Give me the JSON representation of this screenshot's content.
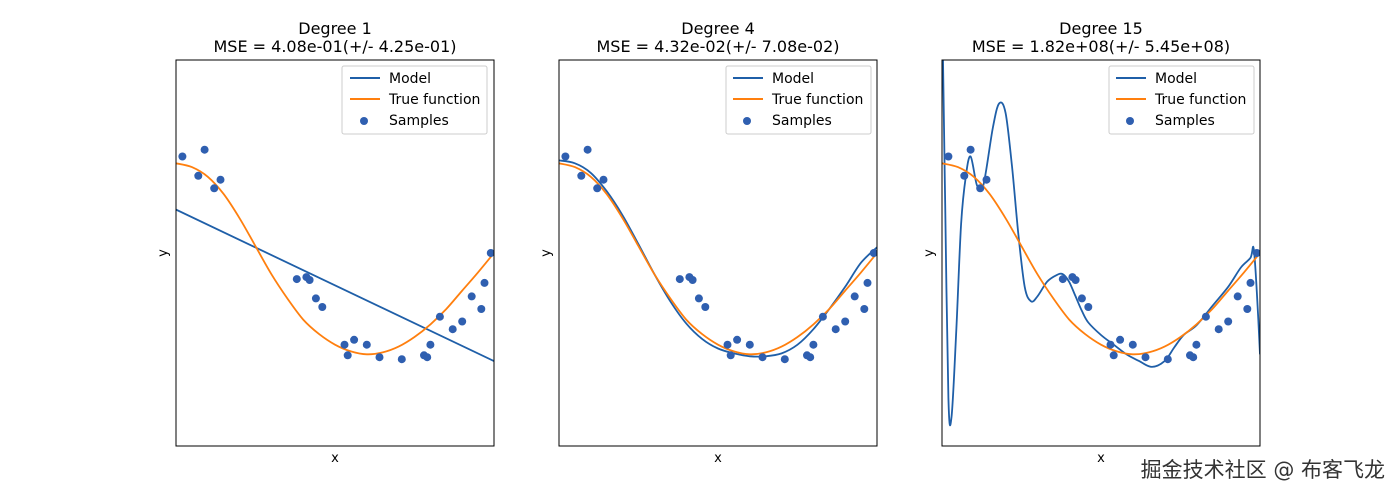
{
  "watermark": "掘金技术社区 @ 布客飞龙",
  "chart_data": [
    {
      "type": "line",
      "title": "Degree 1",
      "subtitle": "MSE = 4.08e-01(+/- 4.25e-01)",
      "xlabel": "x",
      "ylabel": "y",
      "xlim": [
        0,
        1
      ],
      "ylim": [
        -2,
        2
      ],
      "ticks_shown": false,
      "legend": {
        "position": "top-right",
        "entries": [
          "Model",
          "True function",
          "Samples"
        ]
      },
      "colors": {
        "model": "#1f5fa8",
        "true_function": "#ff7f0e",
        "samples": "#2f5fb0"
      },
      "samples": {
        "x": [
          0.02,
          0.07,
          0.09,
          0.12,
          0.14,
          0.38,
          0.41,
          0.42,
          0.44,
          0.46,
          0.53,
          0.54,
          0.56,
          0.6,
          0.64,
          0.71,
          0.78,
          0.79,
          0.8,
          0.83,
          0.87,
          0.9,
          0.93,
          0.96,
          0.97,
          0.99
        ],
        "y": [
          1.0,
          0.8,
          1.07,
          0.67,
          0.76,
          -0.27,
          -0.25,
          -0.28,
          -0.47,
          -0.56,
          -0.95,
          -1.06,
          -0.9,
          -0.95,
          -1.08,
          -1.1,
          -1.06,
          -1.08,
          -0.95,
          -0.66,
          -0.79,
          -0.71,
          -0.45,
          -0.58,
          -0.31,
          -0.0
        ]
      },
      "model": {
        "x": [
          0,
          1
        ],
        "y": [
          0.45,
          -1.12
        ]
      },
      "true_function": {
        "x": [
          0,
          0.05,
          0.1,
          0.15,
          0.2,
          0.25,
          0.3,
          0.35,
          0.4,
          0.45,
          0.5,
          0.55,
          0.6,
          0.65,
          0.7,
          0.75,
          0.8,
          0.85,
          0.9,
          0.95,
          1.0
        ],
        "y": [
          0.93,
          0.89,
          0.79,
          0.61,
          0.36,
          0.07,
          -0.22,
          -0.47,
          -0.69,
          -0.84,
          -0.95,
          -1.02,
          -1.05,
          -1.03,
          -0.97,
          -0.87,
          -0.74,
          -0.58,
          -0.39,
          -0.2,
          0.0
        ]
      }
    },
    {
      "type": "line",
      "title": "Degree 4",
      "subtitle": "MSE = 4.32e-02(+/- 7.08e-02)",
      "xlabel": "x",
      "ylabel": "y",
      "xlim": [
        0,
        1
      ],
      "ylim": [
        -2,
        2
      ],
      "ticks_shown": false,
      "legend": {
        "position": "top-right",
        "entries": [
          "Model",
          "True function",
          "Samples"
        ]
      },
      "colors": {
        "model": "#1f5fa8",
        "true_function": "#ff7f0e",
        "samples": "#2f5fb0"
      },
      "samples": {
        "x": [
          0.02,
          0.07,
          0.09,
          0.12,
          0.14,
          0.38,
          0.41,
          0.42,
          0.44,
          0.46,
          0.53,
          0.54,
          0.56,
          0.6,
          0.64,
          0.71,
          0.78,
          0.79,
          0.8,
          0.83,
          0.87,
          0.9,
          0.93,
          0.96,
          0.97,
          0.99
        ],
        "y": [
          1.0,
          0.8,
          1.07,
          0.67,
          0.76,
          -0.27,
          -0.25,
          -0.28,
          -0.47,
          -0.56,
          -0.95,
          -1.06,
          -0.9,
          -0.95,
          -1.08,
          -1.1,
          -1.06,
          -1.08,
          -0.95,
          -0.66,
          -0.79,
          -0.71,
          -0.45,
          -0.58,
          -0.31,
          -0.0
        ]
      },
      "model": {
        "x": [
          0,
          0.05,
          0.1,
          0.15,
          0.2,
          0.25,
          0.3,
          0.35,
          0.4,
          0.45,
          0.5,
          0.55,
          0.6,
          0.65,
          0.7,
          0.75,
          0.8,
          0.85,
          0.9,
          0.95,
          1.0
        ],
        "y": [
          0.96,
          0.93,
          0.83,
          0.64,
          0.39,
          0.09,
          -0.22,
          -0.5,
          -0.73,
          -0.89,
          -0.99,
          -1.04,
          -1.07,
          -1.07,
          -1.04,
          -0.95,
          -0.79,
          -0.58,
          -0.35,
          -0.1,
          0.06
        ]
      },
      "true_function": {
        "x": [
          0,
          0.05,
          0.1,
          0.15,
          0.2,
          0.25,
          0.3,
          0.35,
          0.4,
          0.45,
          0.5,
          0.55,
          0.6,
          0.65,
          0.7,
          0.75,
          0.8,
          0.85,
          0.9,
          0.95,
          1.0
        ],
        "y": [
          0.93,
          0.89,
          0.79,
          0.61,
          0.36,
          0.07,
          -0.22,
          -0.47,
          -0.69,
          -0.84,
          -0.95,
          -1.02,
          -1.05,
          -1.03,
          -0.97,
          -0.87,
          -0.74,
          -0.58,
          -0.39,
          -0.2,
          0.0
        ]
      }
    },
    {
      "type": "line",
      "title": "Degree 15",
      "subtitle": "MSE = 1.82e+08(+/- 5.45e+08)",
      "xlabel": "x",
      "ylabel": "y",
      "xlim": [
        0,
        1
      ],
      "ylim": [
        -2,
        2
      ],
      "ticks_shown": false,
      "legend": {
        "position": "top-right",
        "entries": [
          "Model",
          "True function",
          "Samples"
        ]
      },
      "colors": {
        "model": "#1f5fa8",
        "true_function": "#ff7f0e",
        "samples": "#2f5fb0"
      },
      "samples": {
        "x": [
          0.02,
          0.07,
          0.09,
          0.12,
          0.14,
          0.38,
          0.41,
          0.42,
          0.44,
          0.46,
          0.53,
          0.54,
          0.56,
          0.6,
          0.64,
          0.71,
          0.78,
          0.79,
          0.8,
          0.83,
          0.87,
          0.9,
          0.93,
          0.96,
          0.97,
          0.99
        ],
        "y": [
          1.0,
          0.8,
          1.07,
          0.67,
          0.76,
          -0.27,
          -0.25,
          -0.28,
          -0.47,
          -0.56,
          -0.95,
          -1.06,
          -0.9,
          -0.95,
          -1.08,
          -1.1,
          -1.06,
          -1.08,
          -0.95,
          -0.66,
          -0.79,
          -0.71,
          -0.45,
          -0.58,
          -0.31,
          -0.0
        ]
      },
      "model": {
        "x": [
          0.003,
          0.01,
          0.02,
          0.03,
          0.045,
          0.06,
          0.075,
          0.09,
          0.11,
          0.13,
          0.16,
          0.18,
          0.2,
          0.22,
          0.24,
          0.26,
          0.28,
          0.3,
          0.33,
          0.36,
          0.38,
          0.4,
          0.42,
          0.44,
          0.46,
          0.5,
          0.54,
          0.58,
          0.62,
          0.66,
          0.7,
          0.73,
          0.76,
          0.8,
          0.85,
          0.9,
          0.94,
          0.97,
          0.98,
          0.99,
          1.0
        ],
        "y": [
          2.0,
          0.5,
          -1.5,
          -1.7,
          -0.8,
          0.3,
          0.8,
          1.0,
          0.7,
          0.7,
          1.3,
          1.55,
          1.45,
          0.9,
          0.2,
          -0.35,
          -0.5,
          -0.45,
          -0.3,
          -0.23,
          -0.22,
          -0.3,
          -0.45,
          -0.6,
          -0.72,
          -0.85,
          -0.95,
          -1.05,
          -1.12,
          -1.18,
          -1.12,
          -0.98,
          -0.85,
          -0.75,
          -0.55,
          -0.35,
          -0.15,
          -0.05,
          0.05,
          -0.4,
          -1.05
        ]
      },
      "true_function": {
        "x": [
          0,
          0.05,
          0.1,
          0.15,
          0.2,
          0.25,
          0.3,
          0.35,
          0.4,
          0.45,
          0.5,
          0.55,
          0.6,
          0.65,
          0.7,
          0.75,
          0.8,
          0.85,
          0.9,
          0.95,
          1.0
        ],
        "y": [
          0.93,
          0.89,
          0.79,
          0.61,
          0.36,
          0.07,
          -0.22,
          -0.47,
          -0.69,
          -0.84,
          -0.95,
          -1.02,
          -1.05,
          -1.03,
          -0.97,
          -0.87,
          -0.74,
          -0.58,
          -0.39,
          -0.2,
          0.0
        ]
      }
    }
  ]
}
